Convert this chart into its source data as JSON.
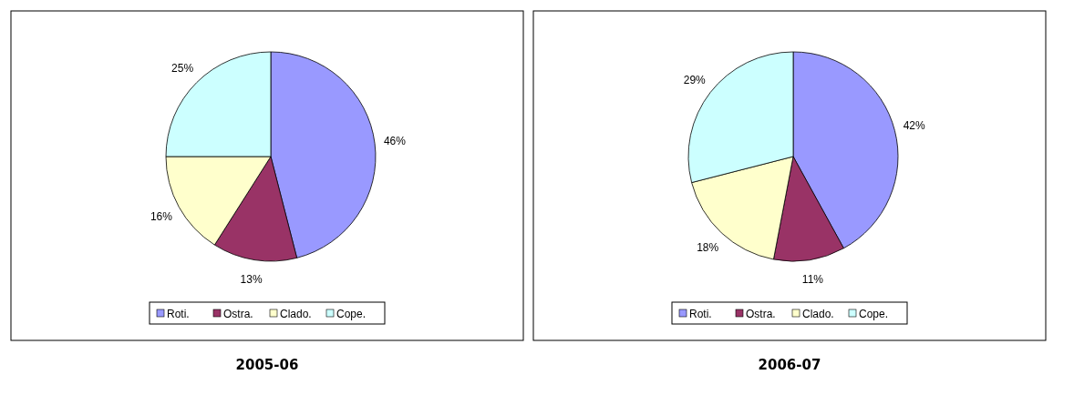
{
  "chart_data": [
    {
      "type": "pie",
      "title": "2005-06",
      "categories": [
        "Roti.",
        "Ostra.",
        "Clado.",
        "Cope."
      ],
      "values": [
        46,
        13,
        16,
        25
      ],
      "value_labels": [
        "46%",
        "13%",
        "16%",
        "25%"
      ],
      "colors": [
        "#9999ff",
        "#993366",
        "#ffffcc",
        "#ccffff"
      ],
      "legend": "bottom"
    },
    {
      "type": "pie",
      "title": "2006-07",
      "categories": [
        "Roti.",
        "Ostra.",
        "Clado.",
        "Cope."
      ],
      "values": [
        42,
        11,
        18,
        29
      ],
      "value_labels": [
        "42%",
        "11%",
        "18%",
        "29%"
      ],
      "colors": [
        "#9999ff",
        "#993366",
        "#ffffcc",
        "#ccffff"
      ],
      "legend": "bottom"
    }
  ]
}
